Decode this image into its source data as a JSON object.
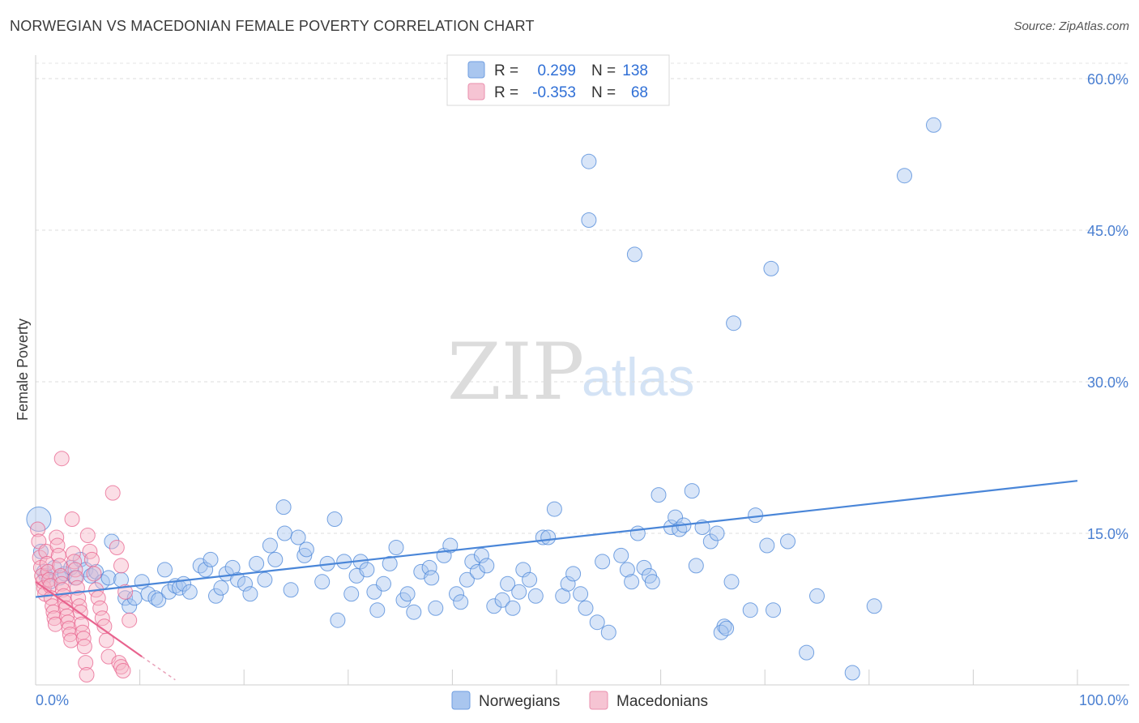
{
  "header": {
    "title": "NORWEGIAN VS MACEDONIAN FEMALE POVERTY CORRELATION CHART",
    "source": "Source: ZipAtlas.com"
  },
  "watermark": {
    "zip": "ZIP",
    "atlas": "atlas"
  },
  "legend": {
    "rows": [
      {
        "r_label": "R =",
        "r_value": "0.299",
        "n_label": "N =",
        "n_value": "138",
        "color": "#a9c6ef"
      },
      {
        "r_label": "R =",
        "r_value": "-0.353",
        "n_label": "N =",
        "n_value": "68",
        "color": "#f6b5c8"
      }
    ]
  },
  "bottom_legend": [
    {
      "label": "Norwegians",
      "color": "#a9c6ef"
    },
    {
      "label": "Macedonians",
      "color": "#f6b5c8"
    }
  ],
  "chart_data": {
    "type": "scatter",
    "title": "NORWEGIAN VS MACEDONIAN FEMALE POVERTY CORRELATION CHART",
    "ylabel": "Female Poverty",
    "xlabel": "",
    "xlim": [
      0,
      100
    ],
    "ylim": [
      0,
      63
    ],
    "x_tick_labels": [
      "0.0%",
      "100.0%"
    ],
    "y_ticks": [
      15,
      30,
      45,
      60
    ],
    "y_tick_labels": [
      "15.0%",
      "30.0%",
      "45.0%",
      "60.0%"
    ],
    "grid": true,
    "legend_position": "top-center",
    "series": [
      {
        "name": "Norwegians",
        "color": "#4a86d8",
        "fill": "#a9c6ef",
        "trend": {
          "x": [
            0,
            100
          ],
          "y": [
            8.7,
            20.2
          ]
        },
        "points": [
          [
            0.3,
            16.4
          ],
          [
            0.5,
            13.2
          ],
          [
            0.8,
            11.2
          ],
          [
            1.0,
            10.8
          ],
          [
            1.4,
            10.2
          ],
          [
            1.8,
            11.6
          ],
          [
            2.3,
            10.6
          ],
          [
            2.8,
            11.0
          ],
          [
            3.4,
            11.6
          ],
          [
            3.8,
            10.6
          ],
          [
            4.3,
            12.4
          ],
          [
            4.8,
            11.4
          ],
          [
            5.3,
            10.8
          ],
          [
            5.8,
            11.2
          ],
          [
            6.4,
            10.2
          ],
          [
            7.0,
            10.6
          ],
          [
            7.3,
            14.2
          ],
          [
            8.2,
            10.4
          ],
          [
            8.6,
            8.6
          ],
          [
            9.0,
            7.8
          ],
          [
            9.5,
            8.6
          ],
          [
            10.2,
            10.2
          ],
          [
            10.8,
            9.0
          ],
          [
            11.5,
            8.6
          ],
          [
            11.8,
            8.4
          ],
          [
            12.4,
            11.4
          ],
          [
            12.8,
            9.2
          ],
          [
            13.4,
            9.8
          ],
          [
            13.8,
            9.6
          ],
          [
            14.2,
            10.0
          ],
          [
            14.8,
            9.2
          ],
          [
            15.8,
            11.8
          ],
          [
            16.3,
            11.4
          ],
          [
            16.8,
            12.4
          ],
          [
            17.3,
            8.8
          ],
          [
            17.8,
            9.6
          ],
          [
            18.3,
            11.0
          ],
          [
            18.9,
            11.6
          ],
          [
            19.4,
            10.4
          ],
          [
            20.1,
            10.0
          ],
          [
            20.6,
            9.0
          ],
          [
            21.2,
            12.0
          ],
          [
            22.0,
            10.4
          ],
          [
            22.5,
            13.8
          ],
          [
            23.0,
            12.4
          ],
          [
            23.8,
            17.6
          ],
          [
            23.9,
            15.0
          ],
          [
            24.5,
            9.4
          ],
          [
            25.2,
            14.6
          ],
          [
            25.8,
            12.8
          ],
          [
            26.0,
            13.4
          ],
          [
            27.5,
            10.2
          ],
          [
            28.0,
            12.0
          ],
          [
            28.7,
            16.4
          ],
          [
            29.0,
            6.4
          ],
          [
            29.6,
            12.2
          ],
          [
            30.3,
            9.0
          ],
          [
            30.8,
            10.8
          ],
          [
            31.2,
            12.2
          ],
          [
            31.8,
            11.4
          ],
          [
            32.5,
            9.2
          ],
          [
            32.8,
            7.4
          ],
          [
            33.4,
            10.0
          ],
          [
            34.0,
            12.0
          ],
          [
            34.6,
            13.6
          ],
          [
            35.3,
            8.4
          ],
          [
            35.7,
            9.0
          ],
          [
            36.3,
            7.2
          ],
          [
            37.0,
            11.2
          ],
          [
            37.8,
            11.6
          ],
          [
            38.0,
            10.6
          ],
          [
            38.4,
            7.6
          ],
          [
            39.2,
            12.8
          ],
          [
            39.8,
            13.8
          ],
          [
            40.4,
            9.0
          ],
          [
            40.8,
            8.2
          ],
          [
            41.4,
            10.4
          ],
          [
            41.9,
            12.2
          ],
          [
            42.4,
            11.2
          ],
          [
            42.8,
            12.8
          ],
          [
            43.3,
            11.8
          ],
          [
            44.0,
            7.8
          ],
          [
            44.8,
            8.4
          ],
          [
            45.3,
            10.0
          ],
          [
            45.8,
            7.6
          ],
          [
            46.4,
            9.2
          ],
          [
            46.8,
            11.4
          ],
          [
            47.4,
            10.4
          ],
          [
            48.0,
            8.8
          ],
          [
            48.7,
            14.6
          ],
          [
            49.2,
            14.6
          ],
          [
            49.8,
            17.4
          ],
          [
            50.6,
            8.8
          ],
          [
            51.1,
            10.0
          ],
          [
            51.6,
            11.0
          ],
          [
            52.3,
            9.0
          ],
          [
            52.8,
            7.6
          ],
          [
            53.1,
            46.0
          ],
          [
            53.9,
            6.2
          ],
          [
            54.4,
            12.2
          ],
          [
            55.0,
            5.2
          ],
          [
            56.2,
            12.8
          ],
          [
            56.8,
            11.4
          ],
          [
            57.2,
            10.2
          ],
          [
            57.5,
            42.6
          ],
          [
            57.8,
            15.0
          ],
          [
            58.4,
            11.6
          ],
          [
            58.9,
            10.8
          ],
          [
            59.2,
            10.2
          ],
          [
            59.8,
            18.8
          ],
          [
            61.0,
            15.6
          ],
          [
            61.4,
            16.6
          ],
          [
            61.8,
            15.4
          ],
          [
            62.2,
            15.8
          ],
          [
            63.0,
            19.2
          ],
          [
            63.4,
            11.8
          ],
          [
            64.0,
            15.6
          ],
          [
            64.8,
            14.2
          ],
          [
            65.4,
            15.0
          ],
          [
            66.1,
            5.8
          ],
          [
            65.8,
            5.2
          ],
          [
            66.3,
            5.6
          ],
          [
            66.8,
            10.2
          ],
          [
            67.0,
            35.8
          ],
          [
            68.6,
            7.4
          ],
          [
            69.1,
            16.8
          ],
          [
            70.2,
            13.8
          ],
          [
            70.8,
            7.4
          ],
          [
            70.6,
            41.2
          ],
          [
            72.2,
            14.2
          ],
          [
            74.0,
            3.2
          ],
          [
            75.0,
            8.8
          ],
          [
            78.4,
            1.2
          ],
          [
            80.5,
            7.8
          ],
          [
            83.4,
            50.4
          ],
          [
            86.2,
            55.4
          ],
          [
            53.1,
            51.8
          ]
        ]
      },
      {
        "name": "Macedonians",
        "color": "#e8638e",
        "fill": "#f6b5c8",
        "trend": {
          "x": [
            0,
            10.2
          ],
          "y": [
            10.2,
            2.8
          ]
        },
        "trend_dashed": {
          "x": [
            10.2,
            13.4
          ],
          "y": [
            2.8,
            0.5
          ]
        },
        "points": [
          [
            0.2,
            15.4
          ],
          [
            0.3,
            14.2
          ],
          [
            0.4,
            12.6
          ],
          [
            0.5,
            11.6
          ],
          [
            0.6,
            10.8
          ],
          [
            0.7,
            10.2
          ],
          [
            0.8,
            9.6
          ],
          [
            0.9,
            9.0
          ],
          [
            1.0,
            13.2
          ],
          [
            1.1,
            12.0
          ],
          [
            1.2,
            11.2
          ],
          [
            1.3,
            10.4
          ],
          [
            1.4,
            9.8
          ],
          [
            1.5,
            8.6
          ],
          [
            1.6,
            7.8
          ],
          [
            1.7,
            7.2
          ],
          [
            1.8,
            6.6
          ],
          [
            1.9,
            6.0
          ],
          [
            2.0,
            14.6
          ],
          [
            2.1,
            13.8
          ],
          [
            2.2,
            12.8
          ],
          [
            2.3,
            11.8
          ],
          [
            2.4,
            10.8
          ],
          [
            2.5,
            10.0
          ],
          [
            2.6,
            9.4
          ],
          [
            2.7,
            8.8
          ],
          [
            2.8,
            8.2
          ],
          [
            2.9,
            7.6
          ],
          [
            3.0,
            6.8
          ],
          [
            3.1,
            6.2
          ],
          [
            3.2,
            5.6
          ],
          [
            3.3,
            5.0
          ],
          [
            3.4,
            4.4
          ],
          [
            3.5,
            16.4
          ],
          [
            3.6,
            13.0
          ],
          [
            3.7,
            12.2
          ],
          [
            3.8,
            11.4
          ],
          [
            3.9,
            10.6
          ],
          [
            4.0,
            9.6
          ],
          [
            4.1,
            8.6
          ],
          [
            4.2,
            7.8
          ],
          [
            4.3,
            7.2
          ],
          [
            4.4,
            6.0
          ],
          [
            4.5,
            5.2
          ],
          [
            4.6,
            4.6
          ],
          [
            4.7,
            3.8
          ],
          [
            4.8,
            2.2
          ],
          [
            4.9,
            1.0
          ],
          [
            5.0,
            14.8
          ],
          [
            5.2,
            13.2
          ],
          [
            5.4,
            12.4
          ],
          [
            5.6,
            11.0
          ],
          [
            5.8,
            9.4
          ],
          [
            6.0,
            8.6
          ],
          [
            6.2,
            7.6
          ],
          [
            6.4,
            6.6
          ],
          [
            6.6,
            5.8
          ],
          [
            6.8,
            4.4
          ],
          [
            7.0,
            2.8
          ],
          [
            7.4,
            19.0
          ],
          [
            7.8,
            13.6
          ],
          [
            8.2,
            11.8
          ],
          [
            8.6,
            9.2
          ],
          [
            9.0,
            6.4
          ],
          [
            2.5,
            22.4
          ],
          [
            8.0,
            2.2
          ],
          [
            8.2,
            1.8
          ],
          [
            8.4,
            1.4
          ]
        ]
      }
    ]
  }
}
